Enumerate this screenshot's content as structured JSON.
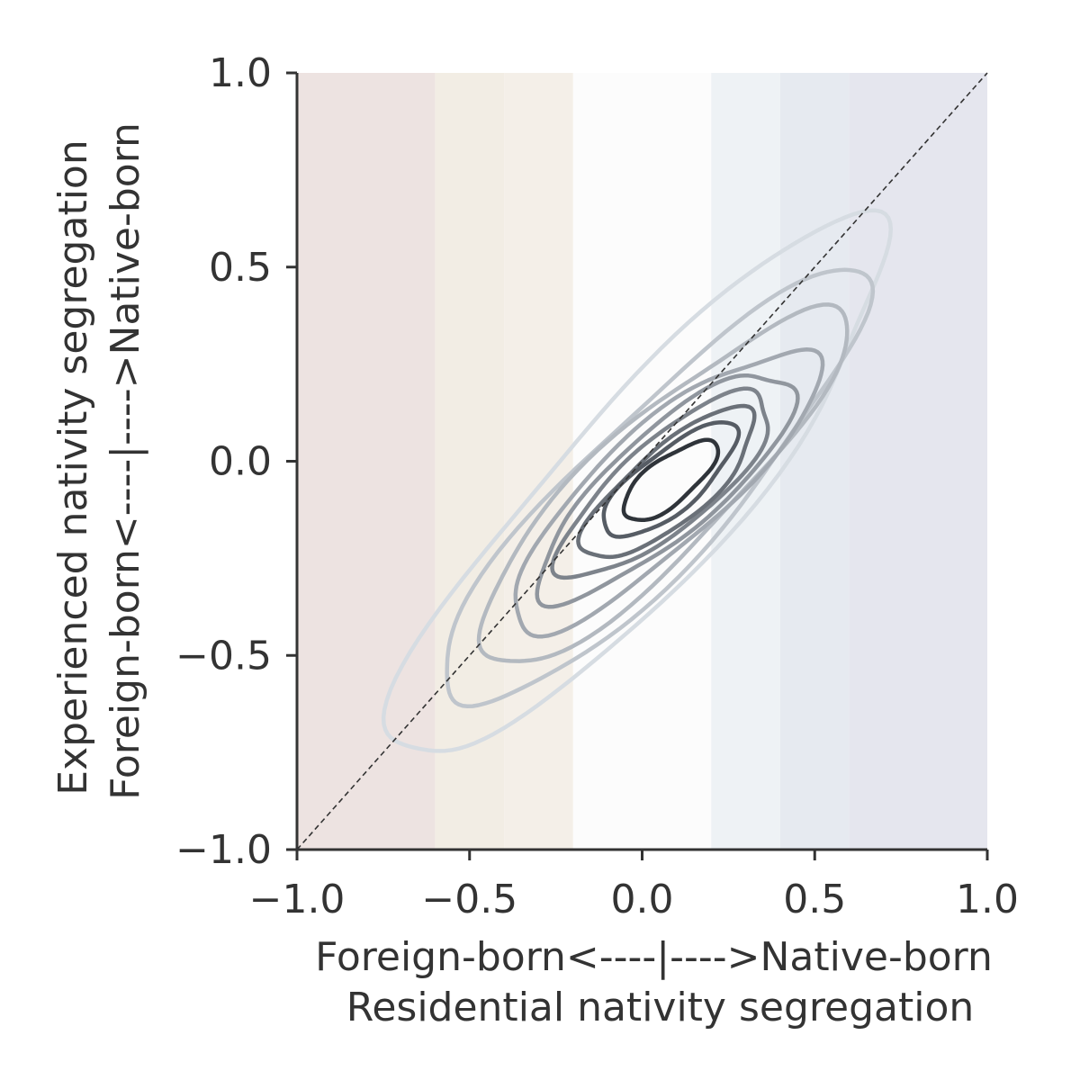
{
  "chart_data": {
    "type": "contour",
    "title": "",
    "xlabel_lines": [
      "Foreign-born<----|---->Native-born",
      "Residential nativity segregation"
    ],
    "ylabel_lines": [
      "Experienced nativity segregation",
      "Foreign-born<----|---->Native-born"
    ],
    "xlim": [
      -1.0,
      1.0
    ],
    "ylim": [
      -1.0,
      1.0
    ],
    "x_ticks": [
      -1.0,
      -0.5,
      0.0,
      0.5,
      1.0
    ],
    "x_tick_labels": [
      "−1.0",
      "−0.5",
      "0.0",
      "0.5",
      "1.0"
    ],
    "y_ticks": [
      -1.0,
      -0.5,
      0.0,
      0.5,
      1.0
    ],
    "y_tick_labels": [
      "−1.0",
      "−0.5",
      "0.0",
      "0.5",
      "1.0"
    ],
    "grid": false,
    "reference_line": {
      "from": [
        -1.0,
        -1.0
      ],
      "to": [
        1.0,
        1.0
      ],
      "style": "dashed",
      "color": "#333333"
    },
    "background_bands": [
      {
        "x0": -1.0,
        "x1": -0.6,
        "color": "#ede3e1"
      },
      {
        "x0": -0.6,
        "x1": -0.4,
        "color": "#f2ede4"
      },
      {
        "x0": -0.4,
        "x1": -0.2,
        "color": "#f4efe8"
      },
      {
        "x0": -0.2,
        "x1": 0.2,
        "color": "#fcfcfc"
      },
      {
        "x0": 0.2,
        "x1": 0.4,
        "color": "#eef2f5"
      },
      {
        "x0": 0.4,
        "x1": 0.6,
        "color": "#e6eaf0"
      },
      {
        "x0": 0.6,
        "x1": 1.0,
        "color": "#e5e6ee"
      }
    ],
    "contours": [
      {
        "level": 1,
        "color": "#d6dce2",
        "cx": 0.0,
        "cy": -0.08,
        "a": 0.97,
        "b": 0.24,
        "angle_deg": 44
      },
      {
        "level": 2,
        "color": "#bfc5cc",
        "cx": 0.03,
        "cy": -0.08,
        "a": 0.81,
        "b": 0.2,
        "angle_deg": 42
      },
      {
        "level": 3,
        "color": "#b3b9c0",
        "cx": 0.05,
        "cy": -0.07,
        "a": 0.68,
        "b": 0.18,
        "angle_deg": 40
      },
      {
        "level": 4,
        "color": "#a2a8b0",
        "cx": 0.06,
        "cy": -0.07,
        "a": 0.55,
        "b": 0.16,
        "angle_deg": 38
      },
      {
        "level": 5,
        "color": "#90969e",
        "cx": 0.07,
        "cy": -0.06,
        "a": 0.45,
        "b": 0.14,
        "angle_deg": 37
      },
      {
        "level": 6,
        "color": "#7d838b",
        "cx": 0.07,
        "cy": -0.06,
        "a": 0.37,
        "b": 0.12,
        "angle_deg": 36
      },
      {
        "level": 7,
        "color": "#6a7078",
        "cx": 0.08,
        "cy": -0.06,
        "a": 0.3,
        "b": 0.1,
        "angle_deg": 36
      },
      {
        "level": 8,
        "color": "#565c64",
        "cx": 0.08,
        "cy": -0.05,
        "a": 0.23,
        "b": 0.08,
        "angle_deg": 35
      },
      {
        "level": 9,
        "color": "#2f343a",
        "cx": 0.08,
        "cy": -0.05,
        "a": 0.16,
        "b": 0.06,
        "angle_deg": 34
      }
    ]
  }
}
